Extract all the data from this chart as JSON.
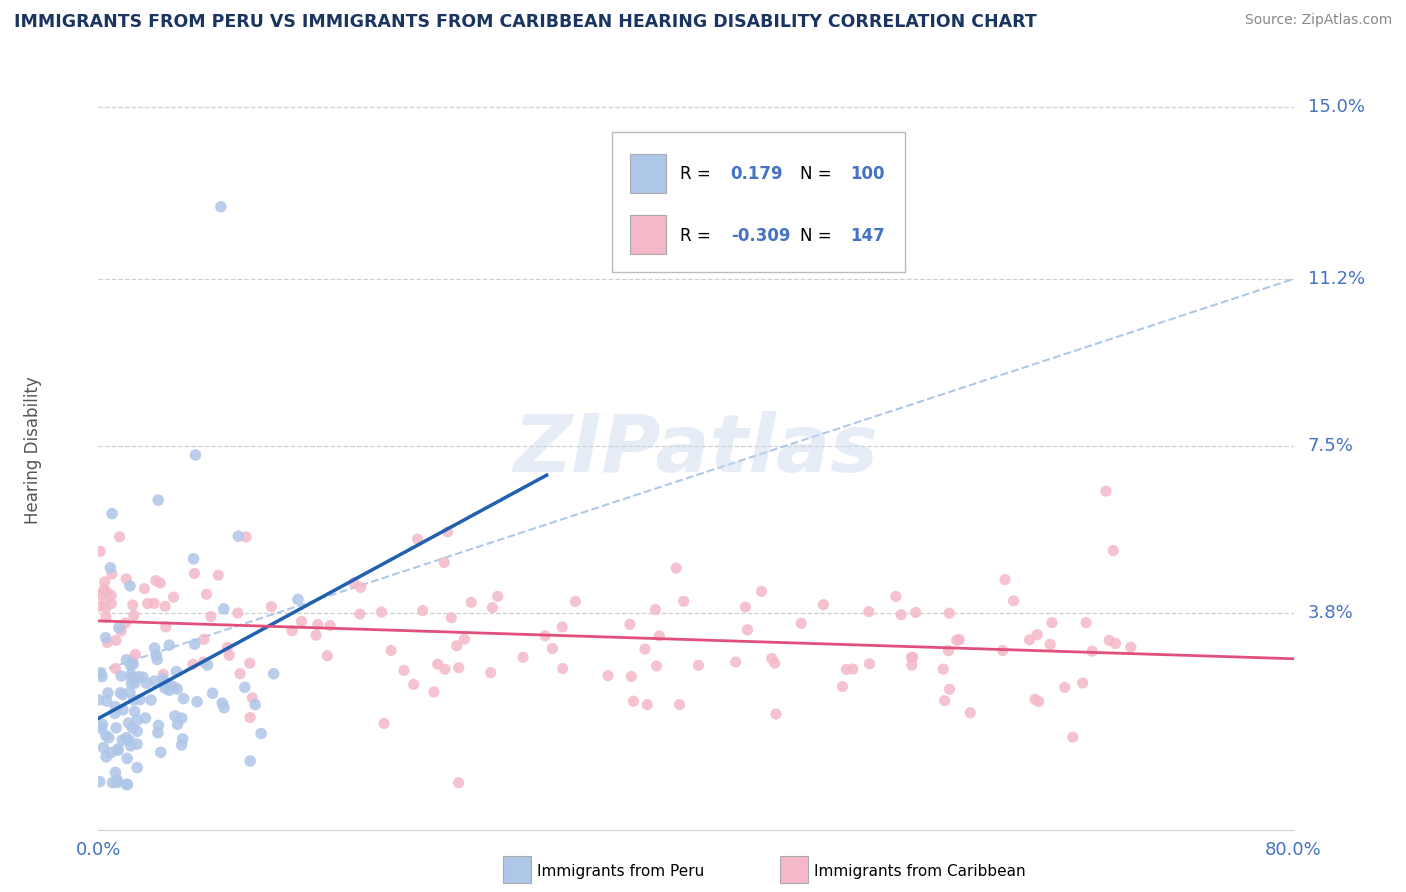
{
  "title": "IMMIGRANTS FROM PERU VS IMMIGRANTS FROM CARIBBEAN HEARING DISABILITY CORRELATION CHART",
  "source": "Source: ZipAtlas.com",
  "ylabel": "Hearing Disability",
  "x_tick_labels": [
    "0.0%",
    "80.0%"
  ],
  "y_tick_labels": [
    "3.8%",
    "7.5%",
    "11.2%",
    "15.0%"
  ],
  "y_tick_values": [
    0.038,
    0.075,
    0.112,
    0.15
  ],
  "x_min": 0.0,
  "x_max": 0.8,
  "y_min": -0.01,
  "y_max": 0.158,
  "legend_label1": "Immigrants from Peru",
  "legend_label2": "Immigrants from Caribbean",
  "r1": 0.179,
  "n1": 100,
  "r2": -0.309,
  "n2": 147,
  "scatter_color1": "#aec6e8",
  "scatter_color2": "#f4b8c8",
  "line_color1": "#2060b0",
  "line_color2": "#e0507a",
  "dash_color": "#b0c8e8",
  "title_color": "#1a3560",
  "tick_color": "#4472c4",
  "source_color": "#888888",
  "background_color": "#ffffff",
  "watermark": "ZIPatlas",
  "grid_color": "#d0d0d0"
}
